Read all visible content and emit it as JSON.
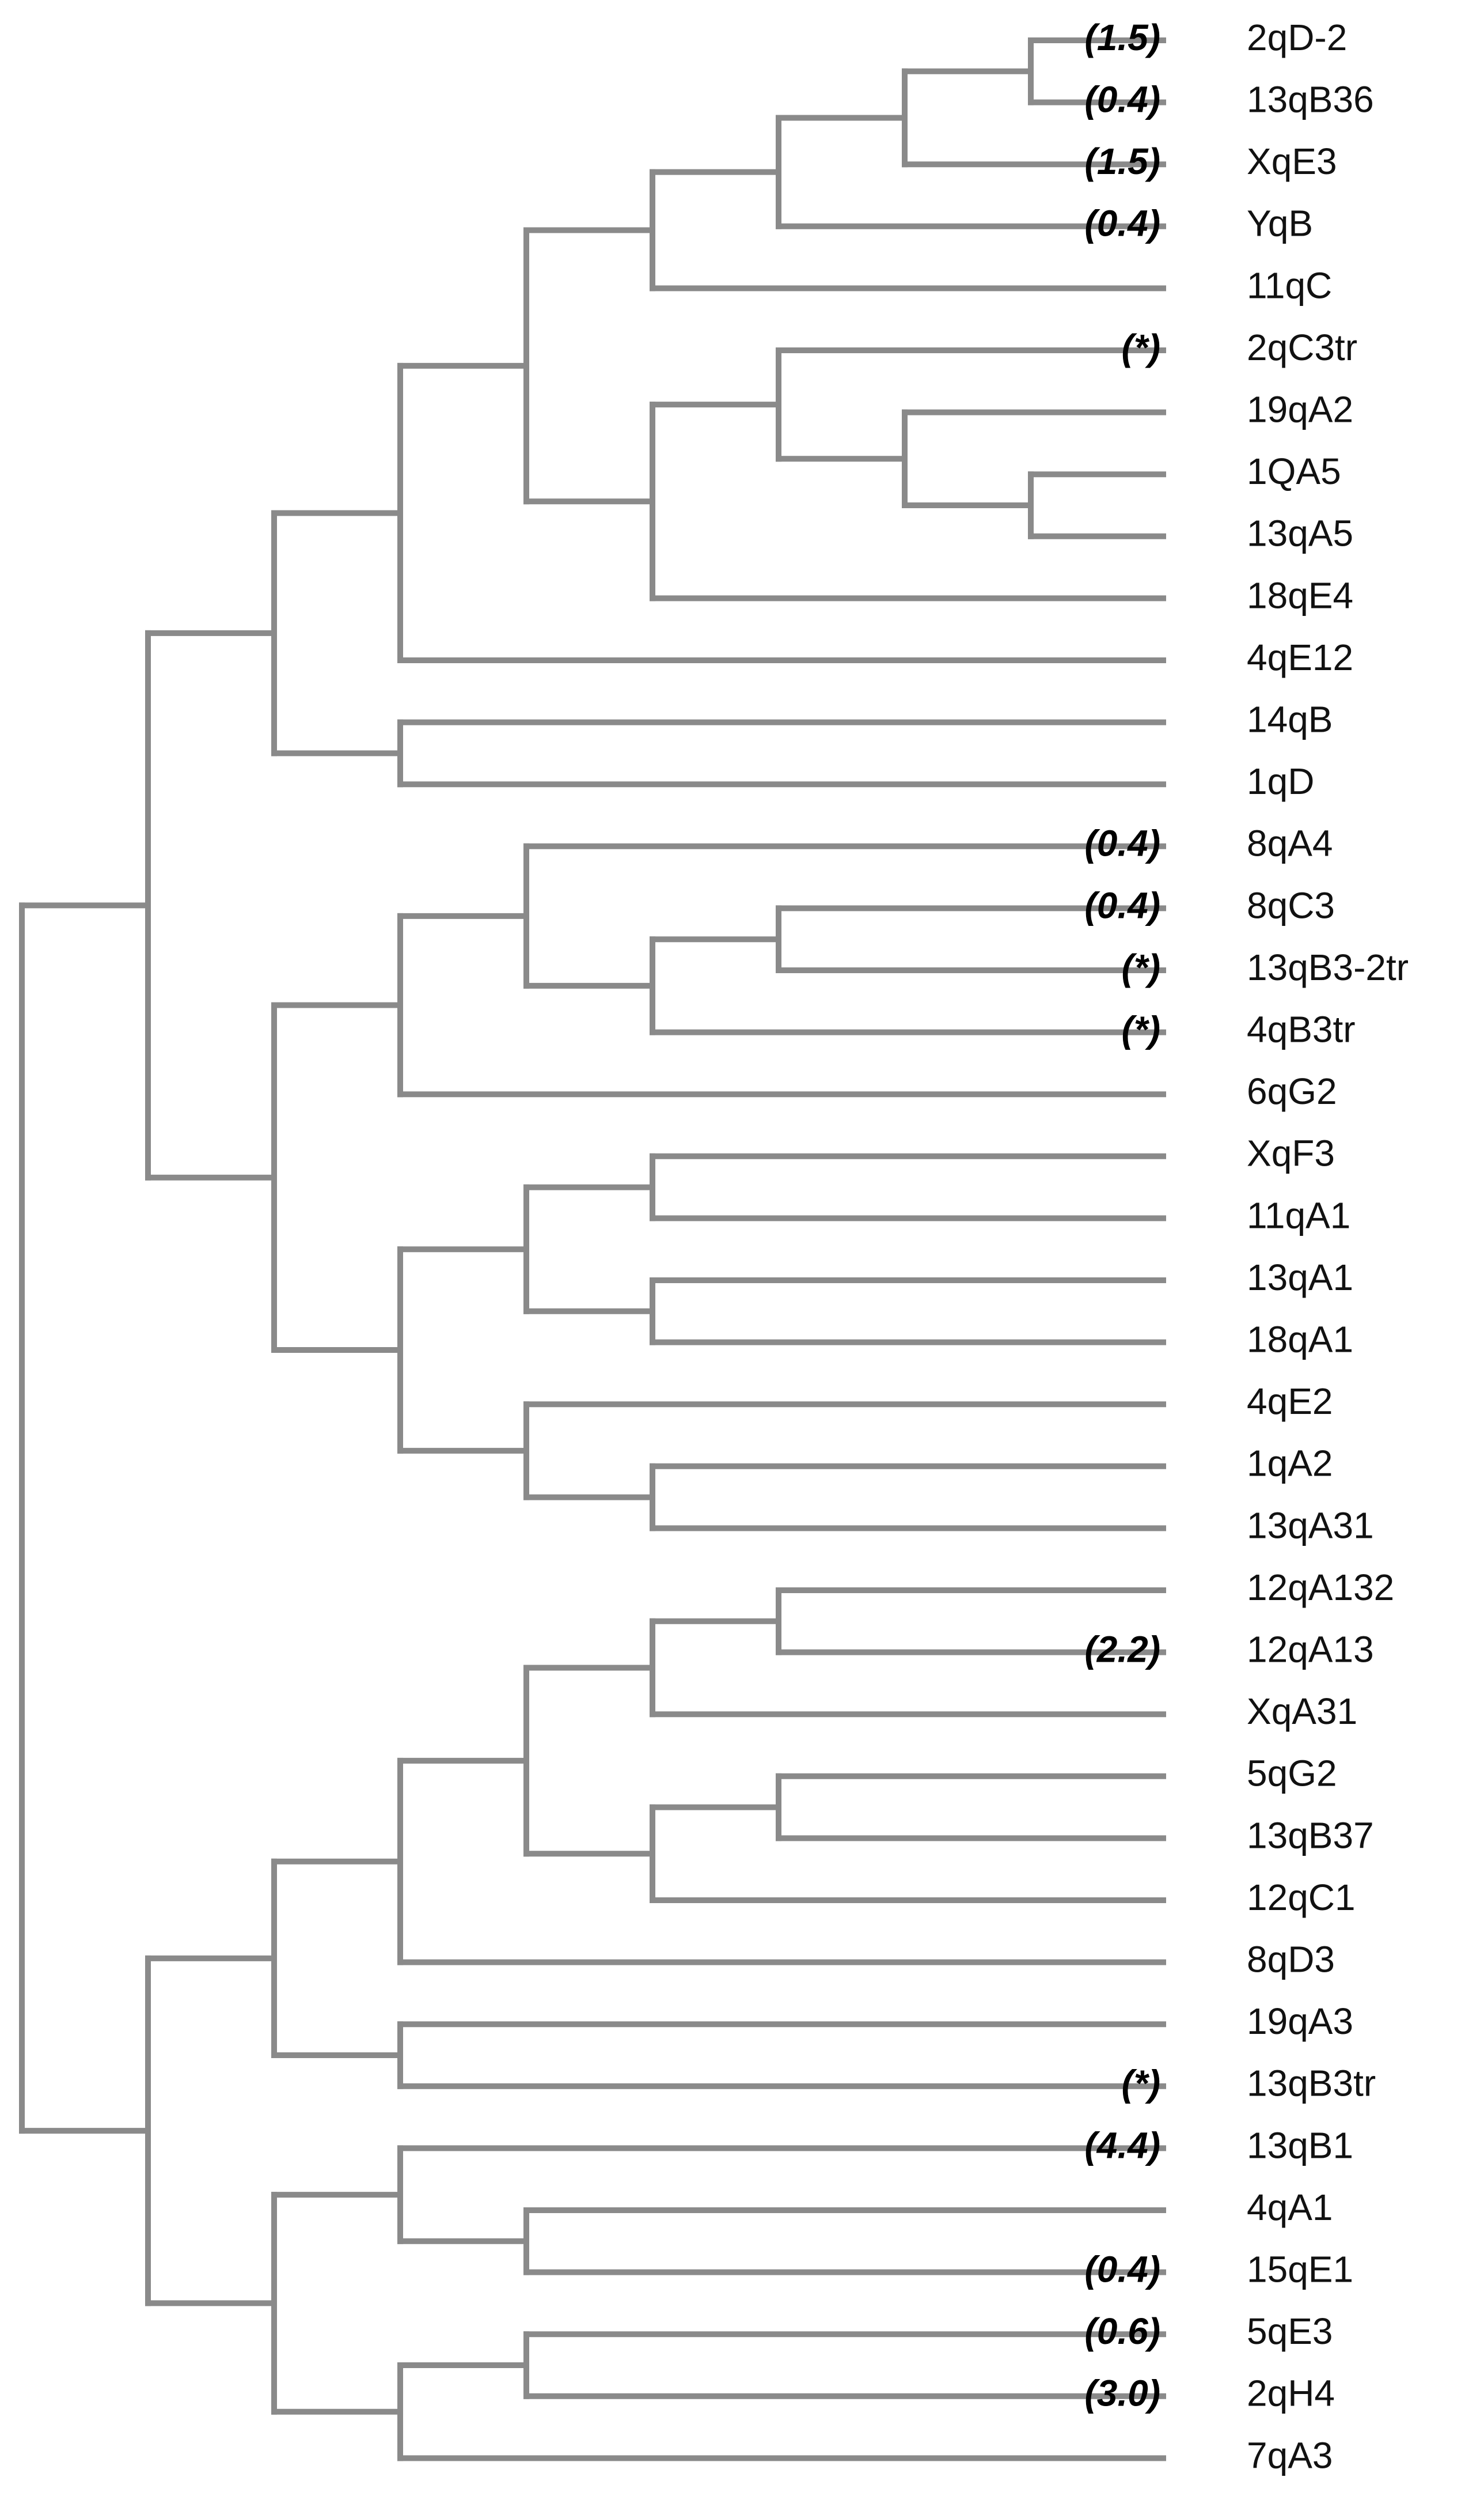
{
  "figure": {
    "type": "dendrogram",
    "line_color": "#8a8a8a",
    "text_color": "#111111"
  },
  "tree": {
    "children": [
      {
        "children": [
          {
            "children": [
              {
                "children": [
                  {
                    "children": [
                      {
                        "children": [
                          {
                            "children": [
                              {
                                "children": [
                                  {
                                    "label": "2qD-2",
                                    "value": "(1.5)"
                                  },
                                  {
                                    "label": "13qB36",
                                    "value": "(0.4)"
                                  }
                                ]
                              },
                              {
                                "label": "XqE3",
                                "value": "(1.5)"
                              }
                            ]
                          },
                          {
                            "label": "YqB",
                            "value": "(0.4)"
                          }
                        ]
                      },
                      {
                        "label": "11qC",
                        "value": ""
                      }
                    ]
                  },
                  {
                    "children": [
                      {
                        "children": [
                          {
                            "label": "2qC3tr",
                            "value": "(*)"
                          },
                          {
                            "children": [
                              {
                                "label": "19qA2",
                                "value": ""
                              },
                              {
                                "children": [
                                  {
                                    "label": "1QA5",
                                    "value": ""
                                  },
                                  {
                                    "label": "13qA5",
                                    "value": ""
                                  }
                                ]
                              }
                            ]
                          }
                        ]
                      },
                      {
                        "label": "18qE4",
                        "value": ""
                      }
                    ]
                  }
                ]
              },
              {
                "label": "4qE12",
                "value": ""
              }
            ]
          },
          {
            "children": [
              {
                "label": "14qB",
                "value": ""
              },
              {
                "label": "1qD",
                "value": ""
              }
            ]
          }
        ]
      },
      {
        "children": [
          {
            "children": [
              {
                "children": [
                  {
                    "label": "8qA4",
                    "value": "(0.4)"
                  },
                  {
                    "children": [
                      {
                        "children": [
                          {
                            "label": "8qC3",
                            "value": "(0.4)"
                          },
                          {
                            "label": "13qB3-2tr",
                            "value": "(*)"
                          }
                        ]
                      },
                      {
                        "label": "4qB3tr",
                        "value": "(*)"
                      }
                    ]
                  }
                ]
              },
              {
                "label": "6qG2",
                "value": ""
              }
            ]
          },
          {
            "children": [
              {
                "children": [
                  {
                    "children": [
                      {
                        "label": "XqF3",
                        "value": ""
                      },
                      {
                        "label": "11qA1",
                        "value": ""
                      }
                    ]
                  },
                  {
                    "children": [
                      {
                        "label": "13qA1",
                        "value": ""
                      },
                      {
                        "label": "18qA1",
                        "value": ""
                      }
                    ]
                  }
                ]
              },
              {
                "children": [
                  {
                    "label": "4qE2",
                    "value": ""
                  },
                  {
                    "children": [
                      {
                        "label": "1qA2",
                        "value": ""
                      },
                      {
                        "label": "13qA31",
                        "value": ""
                      }
                    ]
                  }
                ]
              }
            ]
          }
        ]
      }
    ],
    "children_extra": [
      {
        "children": [
          {
            "children": [
              {
                "children": [
                  {
                    "children": [
                      {
                        "children": [
                          {
                            "label": "12qA132",
                            "value": ""
                          },
                          {
                            "label": "12qA13",
                            "value": "(2.2)"
                          }
                        ]
                      },
                      {
                        "label": "XqA31",
                        "value": ""
                      }
                    ]
                  },
                  {
                    "children": [
                      {
                        "children": [
                          {
                            "label": "5qG2",
                            "value": ""
                          },
                          {
                            "label": "13qB37",
                            "value": ""
                          }
                        ]
                      },
                      {
                        "label": "12qC1",
                        "value": ""
                      }
                    ]
                  }
                ]
              },
              {
                "label": "8qD3",
                "value": ""
              }
            ]
          },
          {
            "children": [
              {
                "label": "19qA3",
                "value": ""
              },
              {
                "label": "13qB3tr",
                "value": "(*)"
              }
            ]
          }
        ]
      },
      {
        "children": [
          {
            "children": [
              {
                "label": "13qB1",
                "value": "(4.4)"
              },
              {
                "children": [
                  {
                    "label": "4qA1",
                    "value": ""
                  },
                  {
                    "label": "15qE1",
                    "value": "(0.4)"
                  }
                ]
              }
            ]
          },
          {
            "children": [
              {
                "children": [
                  {
                    "label": "5qE3",
                    "value": "(0.6)"
                  },
                  {
                    "label": "2qH4",
                    "value": "(3.0)"
                  }
                ]
              },
              {
                "label": "7qA3",
                "value": ""
              }
            ]
          }
        ]
      }
    ]
  }
}
